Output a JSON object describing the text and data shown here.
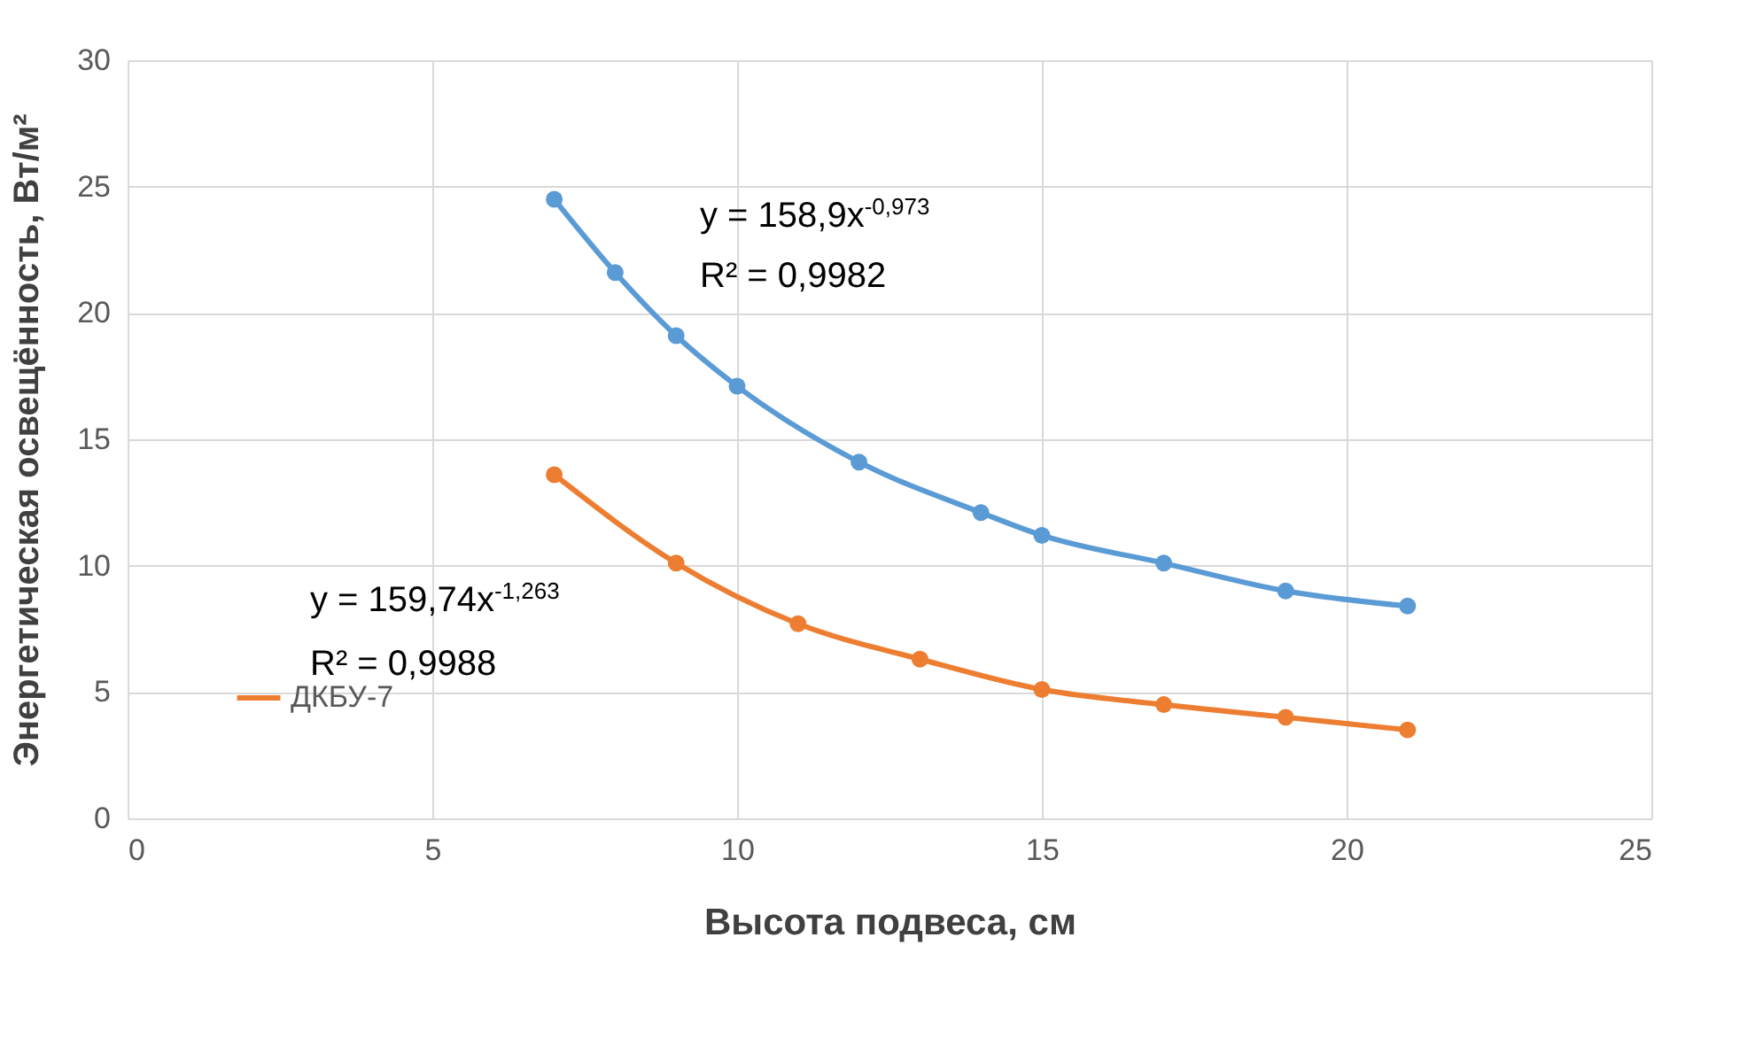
{
  "chart_data": {
    "type": "line",
    "xlabel": "Высота подвеса, см",
    "ylabel": "Энергетическая освещённость,  Вт/м²",
    "xlim": [
      0,
      25
    ],
    "xticks": [
      0,
      5,
      10,
      15,
      20,
      25
    ],
    "ylim": [
      0,
      30
    ],
    "yticks": [
      0,
      5,
      10,
      15,
      20,
      25,
      30
    ],
    "grid": true,
    "marker": "circle",
    "legend": "bottom left",
    "series": [
      {
        "color": "#5b9bd5",
        "x": [
          7,
          8,
          9,
          10,
          12,
          14,
          15,
          17,
          19,
          21
        ],
        "values": [
          24.5,
          21.6,
          19.1,
          17.1,
          14.1,
          12.1,
          11.2,
          10.1,
          9.0,
          8.4
        ]
      },
      {
        "name": "ДКБУ-7",
        "color": "#ed7d31",
        "x": [
          7,
          9,
          11,
          13,
          15,
          17,
          19,
          21
        ],
        "values": [
          13.6,
          10.1,
          7.7,
          6.3,
          5.1,
          4.5,
          4.0,
          3.5
        ]
      }
    ],
    "annotations": [
      "y = 158,9x$^{-0,973}$",
      "R² = 0,9982",
      "y = 159,74x$^{-1,263}$",
      "R² = 0,9988"
    ]
  }
}
